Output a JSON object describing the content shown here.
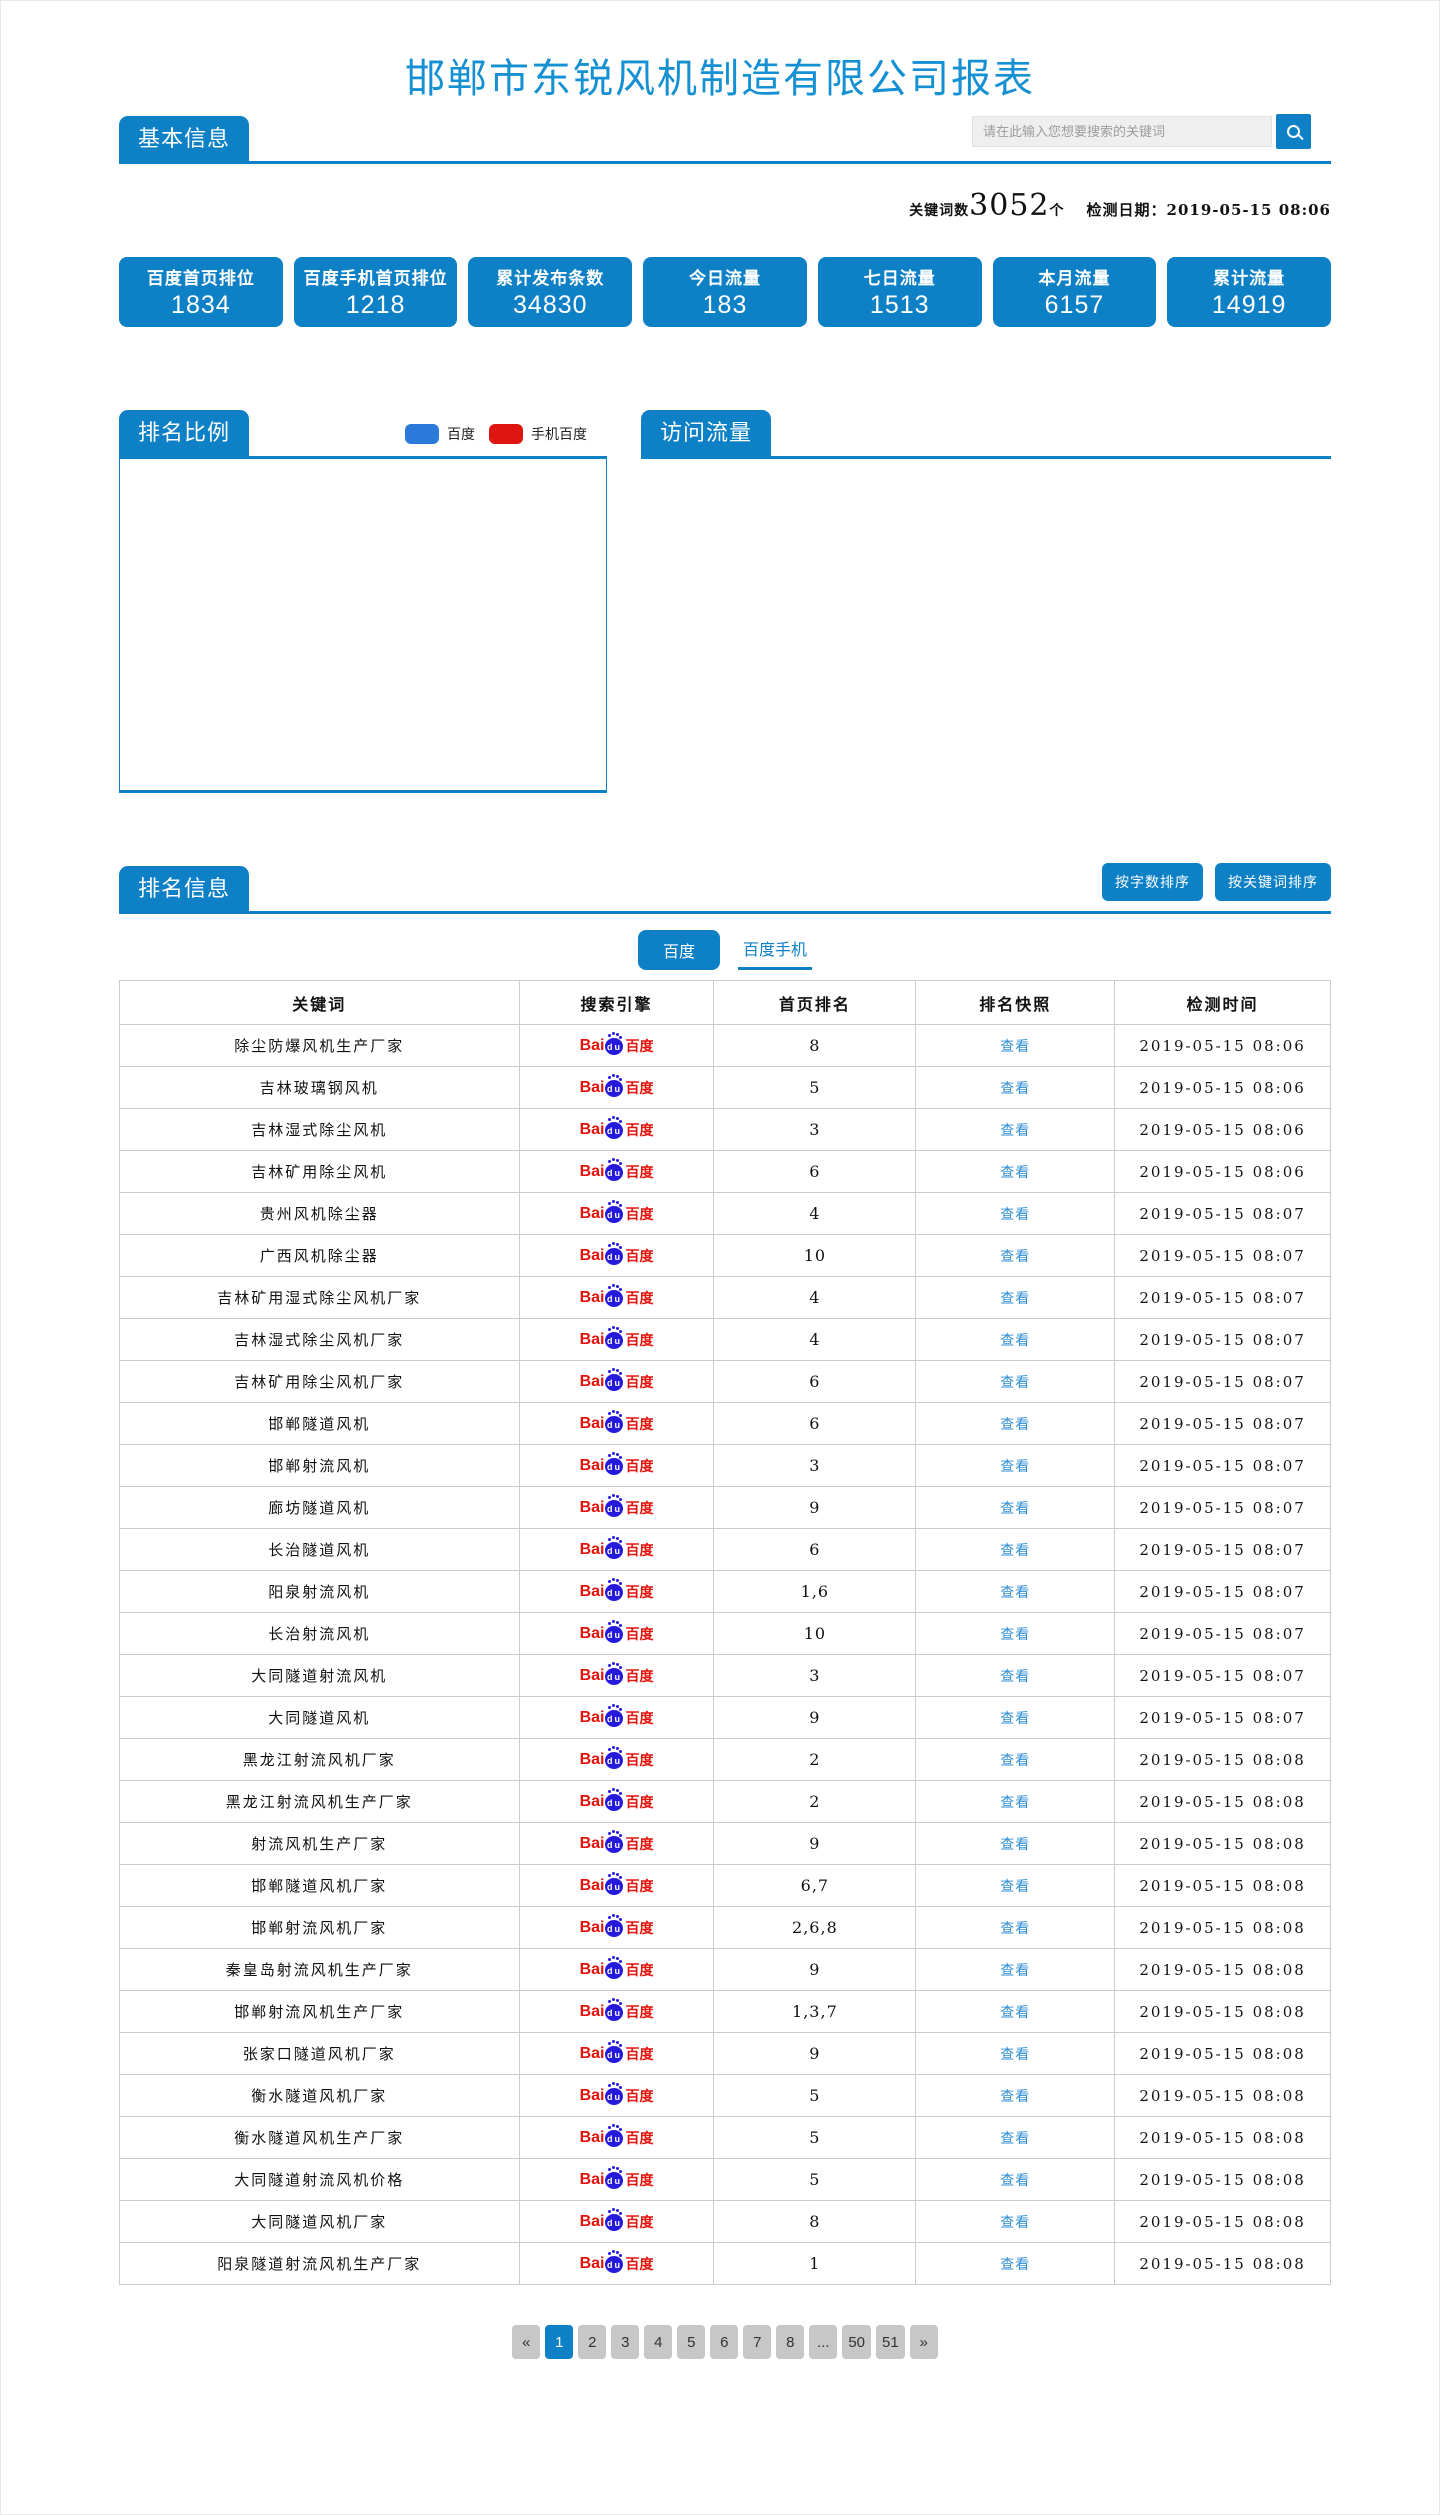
{
  "page": {
    "title": "邯郸市东锐风机制造有限公司报表"
  },
  "basic_info": {
    "tab_label": "基本信息",
    "search": {
      "placeholder": "请在此输入您想要搜索的关键词",
      "value": ""
    },
    "keyword_count": {
      "prefix": "关键词数",
      "count": "3052",
      "suffix": "个"
    },
    "check_date": "检测日期：2019-05-15 08:06",
    "stats": [
      {
        "label": "百度首页排位",
        "value": "1834"
      },
      {
        "label": "百度手机首页排位",
        "value": "1218"
      },
      {
        "label": "累计发布条数",
        "value": "34830"
      },
      {
        "label": "今日流量",
        "value": "183"
      },
      {
        "label": "七日流量",
        "value": "1513"
      },
      {
        "label": "本月流量",
        "value": "6157"
      },
      {
        "label": "累计流量",
        "value": "14919"
      }
    ]
  },
  "charts": {
    "ranking_ratio_label": "排名比例",
    "visit_traffic_label": "访问流量",
    "legend": [
      {
        "label": "百度",
        "color": "#2b79d8"
      },
      {
        "label": "手机百度",
        "color": "#de1510"
      }
    ]
  },
  "ranking_info": {
    "tab_label": "排名信息",
    "sort_buttons": [
      "按字数排序",
      "按关键词排序"
    ],
    "engine_tabs": [
      {
        "label": "百度",
        "active": true
      },
      {
        "label": "百度手机",
        "active": false
      }
    ],
    "table": {
      "headers": [
        "关键词",
        "搜索引擎",
        "首页排名",
        "排名快照",
        "检测时间"
      ],
      "engine_logo": {
        "bai": "Bai",
        "du": "du",
        "cn": "百度"
      },
      "snapshot_link": "查看",
      "rows": [
        {
          "keyword": "除尘防爆风机生产厂家",
          "rank": "8",
          "time": "2019-05-15 08:06"
        },
        {
          "keyword": "吉林玻璃钢风机",
          "rank": "5",
          "time": "2019-05-15 08:06"
        },
        {
          "keyword": "吉林湿式除尘风机",
          "rank": "3",
          "time": "2019-05-15 08:06"
        },
        {
          "keyword": "吉林矿用除尘风机",
          "rank": "6",
          "time": "2019-05-15 08:06"
        },
        {
          "keyword": "贵州风机除尘器",
          "rank": "4",
          "time": "2019-05-15 08:07"
        },
        {
          "keyword": "广西风机除尘器",
          "rank": "10",
          "time": "2019-05-15 08:07"
        },
        {
          "keyword": "吉林矿用湿式除尘风机厂家",
          "rank": "4",
          "time": "2019-05-15 08:07"
        },
        {
          "keyword": "吉林湿式除尘风机厂家",
          "rank": "4",
          "time": "2019-05-15 08:07"
        },
        {
          "keyword": "吉林矿用除尘风机厂家",
          "rank": "6",
          "time": "2019-05-15 08:07"
        },
        {
          "keyword": "邯郸隧道风机",
          "rank": "6",
          "time": "2019-05-15 08:07"
        },
        {
          "keyword": "邯郸射流风机",
          "rank": "3",
          "time": "2019-05-15 08:07"
        },
        {
          "keyword": "廊坊隧道风机",
          "rank": "9",
          "time": "2019-05-15 08:07"
        },
        {
          "keyword": "长治隧道风机",
          "rank": "6",
          "time": "2019-05-15 08:07"
        },
        {
          "keyword": "阳泉射流风机",
          "rank": "1,6",
          "time": "2019-05-15 08:07"
        },
        {
          "keyword": "长治射流风机",
          "rank": "10",
          "time": "2019-05-15 08:07"
        },
        {
          "keyword": "大同隧道射流风机",
          "rank": "3",
          "time": "2019-05-15 08:07"
        },
        {
          "keyword": "大同隧道风机",
          "rank": "9",
          "time": "2019-05-15 08:07"
        },
        {
          "keyword": "黑龙江射流风机厂家",
          "rank": "2",
          "time": "2019-05-15 08:08"
        },
        {
          "keyword": "黑龙江射流风机生产厂家",
          "rank": "2",
          "time": "2019-05-15 08:08"
        },
        {
          "keyword": "射流风机生产厂家",
          "rank": "9",
          "time": "2019-05-15 08:08"
        },
        {
          "keyword": "邯郸隧道风机厂家",
          "rank": "6,7",
          "time": "2019-05-15 08:08"
        },
        {
          "keyword": "邯郸射流风机厂家",
          "rank": "2,6,8",
          "time": "2019-05-15 08:08"
        },
        {
          "keyword": "秦皇岛射流风机生产厂家",
          "rank": "9",
          "time": "2019-05-15 08:08"
        },
        {
          "keyword": "邯郸射流风机生产厂家",
          "rank": "1,3,7",
          "time": "2019-05-15 08:08"
        },
        {
          "keyword": "张家口隧道风机厂家",
          "rank": "9",
          "time": "2019-05-15 08:08"
        },
        {
          "keyword": "衡水隧道风机厂家",
          "rank": "5",
          "time": "2019-05-15 08:08"
        },
        {
          "keyword": "衡水隧道风机生产厂家",
          "rank": "5",
          "time": "2019-05-15 08:08"
        },
        {
          "keyword": "大同隧道射流风机价格",
          "rank": "5",
          "time": "2019-05-15 08:08"
        },
        {
          "keyword": "大同隧道风机厂家",
          "rank": "8",
          "time": "2019-05-15 08:08"
        },
        {
          "keyword": "阳泉隧道射流风机生产厂家",
          "rank": "1",
          "time": "2019-05-15 08:08"
        }
      ]
    },
    "pagination": {
      "items": [
        "«",
        "1",
        "2",
        "3",
        "4",
        "5",
        "6",
        "7",
        "8",
        "...",
        "50",
        "51",
        "»"
      ],
      "active": "1"
    }
  },
  "colors": {
    "primary_blue": "#0e81c6",
    "title_blue": "#1590d2",
    "link_blue": "#2e8fd5",
    "legend_baidu_blue": "#2b79d8",
    "legend_mobile_red": "#de1510",
    "baidu_logo_red": "#e3120b",
    "baidu_logo_blue": "#2519dc",
    "table_border": "#cccccc",
    "pagination_gray": "#c7c7c7"
  }
}
